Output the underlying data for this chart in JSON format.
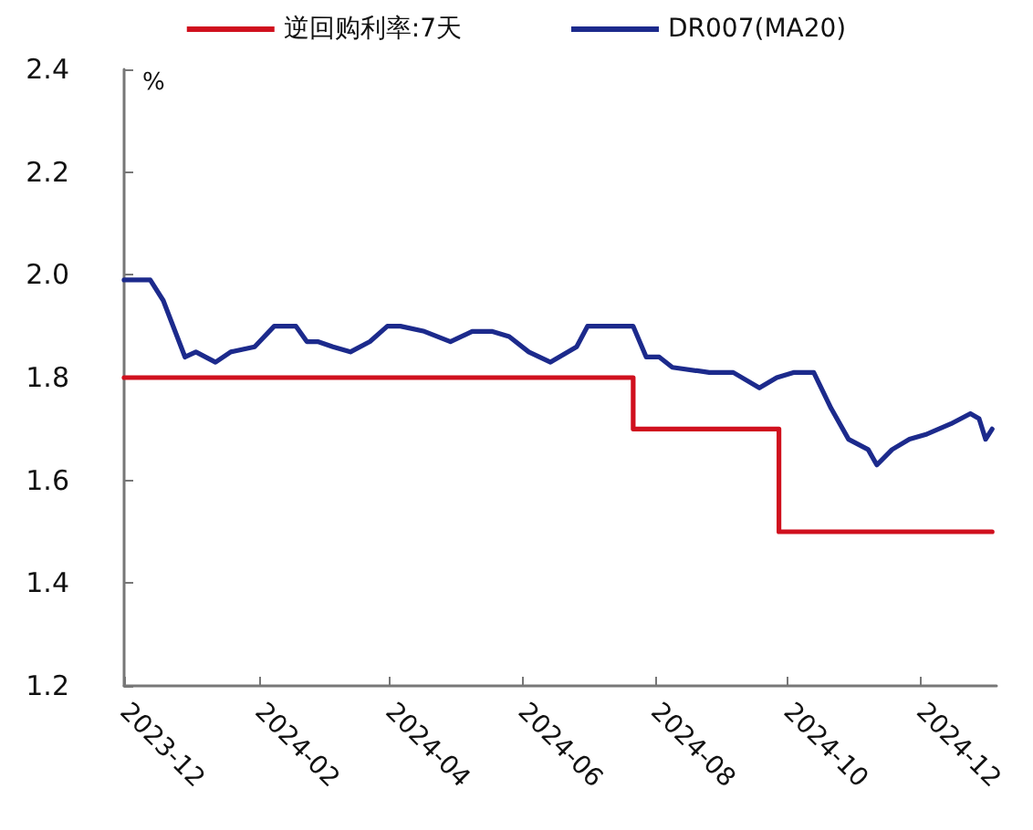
{
  "chart_data": {
    "type": "line",
    "ylabel": "%",
    "legend": "top",
    "grid": false,
    "marker": "none",
    "line_style": "solid",
    "xlim": [
      "2023-12-01",
      "2025-01-05"
    ],
    "xticks": [
      "2023-12",
      "2024-02",
      "2024-04",
      "2024-06",
      "2024-08",
      "2024-10",
      "2024-12"
    ],
    "ylim": [
      1.2,
      2.4
    ],
    "yticks": [
      1.2,
      1.4,
      1.6,
      1.8,
      {
        "value": 2,
        "label": "2.0"
      },
      2.2,
      2.4
    ],
    "series": [
      {
        "name": "逆回购利率:7天",
        "type": "step",
        "color": "#d0101e",
        "x": [
          "2023-12-01",
          "2024-07-22",
          "2024-09-27",
          "2025-01-03"
        ],
        "values": [
          1.8,
          1.7,
          1.5,
          1.5
        ]
      },
      {
        "name": "DR007(MA20)",
        "color": "#1c2a8c",
        "x": [
          "2023-12-01",
          "2023-12-13",
          "2023-12-19",
          "2023-12-29",
          "2024-01-03",
          "2024-01-12",
          "2024-01-19",
          "2024-01-30",
          "2024-02-08",
          "2024-02-18",
          "2024-02-23",
          "2024-02-28",
          "2024-03-06",
          "2024-03-14",
          "2024-03-23",
          "2024-03-31",
          "2024-04-06",
          "2024-04-17",
          "2024-04-29",
          "2024-05-09",
          "2024-05-18",
          "2024-05-26",
          "2024-06-04",
          "2024-06-14",
          "2024-06-26",
          "2024-07-01",
          "2024-07-22",
          "2024-07-28",
          "2024-08-03",
          "2024-08-09",
          "2024-08-26",
          "2024-09-06",
          "2024-09-18",
          "2024-09-26",
          "2024-10-04",
          "2024-10-13",
          "2024-10-21",
          "2024-10-29",
          "2024-11-07",
          "2024-11-11",
          "2024-11-18",
          "2024-11-26",
          "2024-12-04",
          "2024-12-15",
          "2024-12-24",
          "2024-12-28",
          "2024-12-31",
          "2025-01-03"
        ],
        "values": [
          1.99,
          1.99,
          1.95,
          1.84,
          1.85,
          1.83,
          1.85,
          1.86,
          1.9,
          1.9,
          1.87,
          1.87,
          1.86,
          1.85,
          1.87,
          1.9,
          1.9,
          1.89,
          1.87,
          1.89,
          1.89,
          1.88,
          1.85,
          1.83,
          1.86,
          1.9,
          1.9,
          1.84,
          1.84,
          1.82,
          1.81,
          1.81,
          1.78,
          1.8,
          1.81,
          1.81,
          1.74,
          1.68,
          1.66,
          1.63,
          1.66,
          1.68,
          1.69,
          1.71,
          1.73,
          1.72,
          1.68,
          1.7
        ]
      }
    ]
  }
}
